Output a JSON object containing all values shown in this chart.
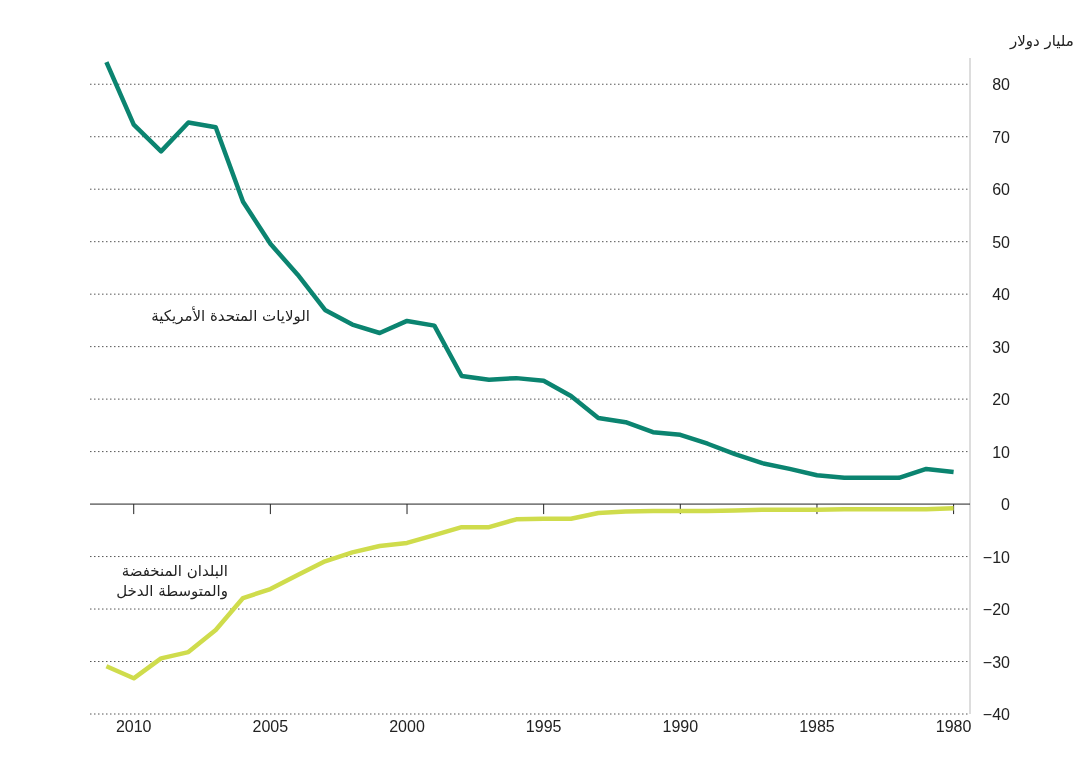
{
  "chart_data": {
    "type": "line",
    "ylabel": "مليار دولار",
    "x": [
      2011,
      2010,
      2009,
      2008,
      2007,
      2006,
      2005,
      2004,
      2003,
      2002,
      2001,
      2000,
      1999,
      1998,
      1997,
      1996,
      1995,
      1994,
      1993,
      1992,
      1991,
      1990,
      1989,
      1988,
      1987,
      1986,
      1985,
      1984,
      1983,
      1982,
      1981,
      1980
    ],
    "series": [
      {
        "name": "الولايات المتحدة الأمريكية",
        "color": "#0b8470",
        "values": [
          84.2,
          72.3,
          67.2,
          72.7,
          71.8,
          57.6,
          49.6,
          43.7,
          37.0,
          34.2,
          32.6,
          34.9,
          34.0,
          24.4,
          23.7,
          24.0,
          23.5,
          20.6,
          16.4,
          15.6,
          13.7,
          13.2,
          11.5,
          9.5,
          7.8,
          6.7,
          5.5,
          5.0,
          5.0,
          5.0,
          6.7,
          6.1
        ]
      },
      {
        "name": "البلدان المنخفضة والمتوسطة الدخل",
        "color": "#cfdc4c",
        "values": [
          -30.9,
          -33.2,
          -29.4,
          -28.2,
          -24.0,
          -17.9,
          -16.2,
          -13.5,
          -10.9,
          -9.2,
          -8.0,
          -7.4,
          -5.9,
          -4.4,
          -4.4,
          -2.9,
          -2.8,
          -2.8,
          -1.7,
          -1.4,
          -1.3,
          -1.3,
          -1.3,
          -1.2,
          -1.1,
          -1.1,
          -1.1,
          -1.0,
          -1.0,
          -1.0,
          -1.0,
          -0.8
        ]
      }
    ],
    "xlim": [
      2011.6,
      1979.4
    ],
    "xticks": [
      2010,
      2005,
      2000,
      1995,
      1990,
      1985,
      1980
    ],
    "ylim": [
      -40,
      85
    ],
    "yticks": [
      -40,
      -30,
      -20,
      -10,
      0,
      10,
      20,
      30,
      40,
      50,
      60,
      70,
      80
    ],
    "grid": "y",
    "legend": false
  }
}
